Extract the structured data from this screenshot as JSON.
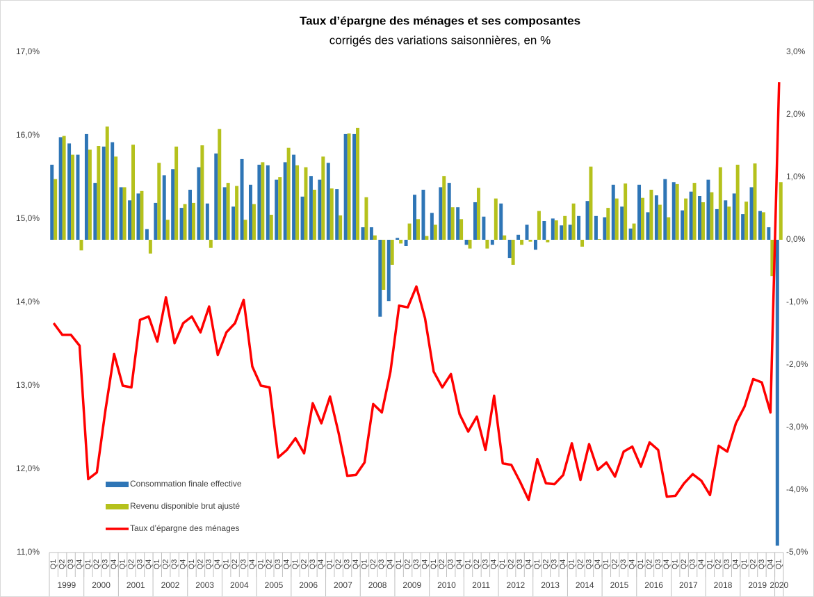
{
  "chart_data": {
    "type": "bar_line",
    "title": "Taux d’épargne des ménages et ses composantes",
    "subtitle": "corrigés des variations saisonnières, en %",
    "categories": [
      "Q1",
      "Q2",
      "Q3",
      "Q4",
      "Q1",
      "Q2",
      "Q3",
      "Q4",
      "Q1",
      "Q2",
      "Q3",
      "Q4",
      "Q1",
      "Q2",
      "Q3",
      "Q4",
      "Q1",
      "Q2",
      "Q3",
      "Q4",
      "Q1",
      "Q2",
      "Q3",
      "Q4",
      "Q1",
      "Q2",
      "Q3",
      "Q4",
      "Q1",
      "Q2",
      "Q3",
      "Q4",
      "Q1",
      "Q2",
      "Q3",
      "Q4",
      "Q1",
      "Q2",
      "Q3",
      "Q4",
      "Q1",
      "Q2",
      "Q3",
      "Q4",
      "Q1",
      "Q2",
      "Q3",
      "Q4",
      "Q1",
      "Q2",
      "Q3",
      "Q4",
      "Q1",
      "Q2",
      "Q3",
      "Q4",
      "Q1",
      "Q2",
      "Q3",
      "Q4",
      "Q1",
      "Q2",
      "Q3",
      "Q4",
      "Q1",
      "Q2",
      "Q3",
      "Q4",
      "Q1",
      "Q2",
      "Q3",
      "Q4",
      "Q1",
      "Q2",
      "Q3",
      "Q4",
      "Q1",
      "Q2",
      "Q3",
      "Q4",
      "Q1",
      "Q2",
      "Q3",
      "Q4",
      "Q1"
    ],
    "years": [
      "1999",
      "2000",
      "2001",
      "2002",
      "2003",
      "2004",
      "2005",
      "2006",
      "2007",
      "2008",
      "2009",
      "2010",
      "2011",
      "2012",
      "2013",
      "2014",
      "2015",
      "2016",
      "2017",
      "2018",
      "2019",
      "2020"
    ],
    "series": [
      {
        "name": "Consommation finale effective",
        "type": "bar",
        "axis": "y2",
        "color": "#2e75b6",
        "values": [
          1.2,
          1.64,
          1.54,
          1.36,
          1.69,
          0.91,
          1.49,
          1.56,
          0.84,
          0.63,
          0.74,
          0.17,
          0.59,
          1.03,
          1.13,
          0.51,
          0.8,
          1.16,
          0.58,
          1.38,
          0.84,
          0.53,
          1.29,
          0.88,
          1.2,
          1.19,
          0.96,
          1.24,
          1.36,
          0.69,
          1.02,
          0.96,
          1.23,
          0.81,
          1.69,
          1.69,
          0.2,
          0.2,
          -1.23,
          -0.98,
          0.03,
          -0.1,
          0.72,
          0.8,
          0.43,
          0.84,
          0.91,
          0.52,
          -0.08,
          0.6,
          0.37,
          -0.08,
          0.58,
          -0.29,
          0.08,
          0.24,
          -0.16,
          0.3,
          0.34,
          0.23,
          0.24,
          0.38,
          0.62,
          0.38,
          0.36,
          0.88,
          0.53,
          0.18,
          0.88,
          0.44,
          0.71,
          0.97,
          0.92,
          0.47,
          0.77,
          0.7,
          0.96,
          0.49,
          0.63,
          0.74,
          0.41,
          0.84,
          0.46,
          0.2,
          -4.89
        ]
      },
      {
        "name": "Revenu disponible brut ajusté",
        "type": "bar",
        "axis": "y2",
        "color": "#b5c11c",
        "values": [
          0.97,
          1.66,
          1.36,
          -0.17,
          1.44,
          1.5,
          1.81,
          1.33,
          0.84,
          1.52,
          0.78,
          -0.22,
          1.23,
          0.32,
          1.49,
          0.57,
          0.59,
          1.51,
          -0.13,
          1.77,
          0.91,
          0.86,
          0.32,
          0.57,
          1.24,
          0.4,
          1.0,
          1.47,
          1.19,
          1.16,
          0.8,
          1.33,
          0.82,
          0.39,
          1.7,
          1.79,
          0.68,
          0.07,
          -0.8,
          -0.4,
          -0.06,
          0.26,
          0.33,
          0.06,
          0.24,
          1.02,
          0.52,
          0.33,
          -0.14,
          0.83,
          -0.14,
          0.66,
          0.07,
          -0.4,
          -0.08,
          -0.03,
          0.46,
          -0.04,
          0.31,
          0.38,
          0.58,
          -0.11,
          1.17,
          0.01,
          0.51,
          0.66,
          0.9,
          0.26,
          0.67,
          0.8,
          0.56,
          0.36,
          0.89,
          0.66,
          0.91,
          0.6,
          0.76,
          1.16,
          0.53,
          1.2,
          0.61,
          1.22,
          0.44,
          -0.58,
          0.92
        ]
      },
      {
        "name": "Taux d’épargne des ménages",
        "type": "line",
        "axis": "y",
        "color": "#ff0000",
        "values": [
          13.75,
          13.61,
          13.61,
          13.48,
          11.88,
          11.96,
          12.71,
          13.38,
          13.0,
          12.98,
          13.79,
          13.83,
          13.53,
          14.06,
          13.51,
          13.75,
          13.83,
          13.64,
          13.95,
          13.37,
          13.64,
          13.75,
          14.03,
          13.23,
          13.0,
          12.98,
          12.14,
          12.23,
          12.37,
          12.19,
          12.79,
          12.55,
          12.87,
          12.43,
          11.92,
          11.93,
          12.08,
          12.78,
          12.68,
          13.17,
          13.96,
          13.94,
          14.19,
          13.81,
          13.17,
          12.98,
          13.14,
          12.66,
          12.45,
          12.63,
          12.23,
          12.88,
          12.07,
          12.05,
          11.85,
          11.63,
          12.12,
          11.83,
          11.82,
          11.93,
          12.31,
          11.87,
          12.3,
          11.99,
          12.08,
          11.91,
          12.21,
          12.27,
          12.03,
          12.32,
          12.23,
          11.67,
          11.68,
          11.83,
          11.94,
          11.86,
          11.69,
          12.28,
          12.21,
          12.55,
          12.75,
          13.08,
          13.04,
          12.68,
          16.64
        ]
      }
    ],
    "ylim": [
      11,
      17
    ],
    "yticks": [
      {
        "value": 11,
        "label": "11,0%"
      },
      {
        "value": 12,
        "label": "12,0%"
      },
      {
        "value": 13,
        "label": "13,0%"
      },
      {
        "value": 14,
        "label": "14,0%"
      },
      {
        "value": 15,
        "label": "15,0%"
      },
      {
        "value": 16,
        "label": "16,0%"
      },
      {
        "value": 17,
        "label": "17,0%"
      }
    ],
    "y2lim": [
      -5,
      3
    ],
    "y2ticks": [
      {
        "value": -5,
        "label": "-5,0%"
      },
      {
        "value": -4,
        "label": "-4,0%"
      },
      {
        "value": -3,
        "label": "-3,0%"
      },
      {
        "value": -2,
        "label": "-2,0%"
      },
      {
        "value": -1,
        "label": "-1,0%"
      },
      {
        "value": 0,
        "label": "0,0%"
      },
      {
        "value": 1,
        "label": "1,0%"
      },
      {
        "value": 2,
        "label": "2,0%"
      },
      {
        "value": 3,
        "label": "3,0%"
      }
    ],
    "grid": false,
    "legend": "bottom-left"
  }
}
